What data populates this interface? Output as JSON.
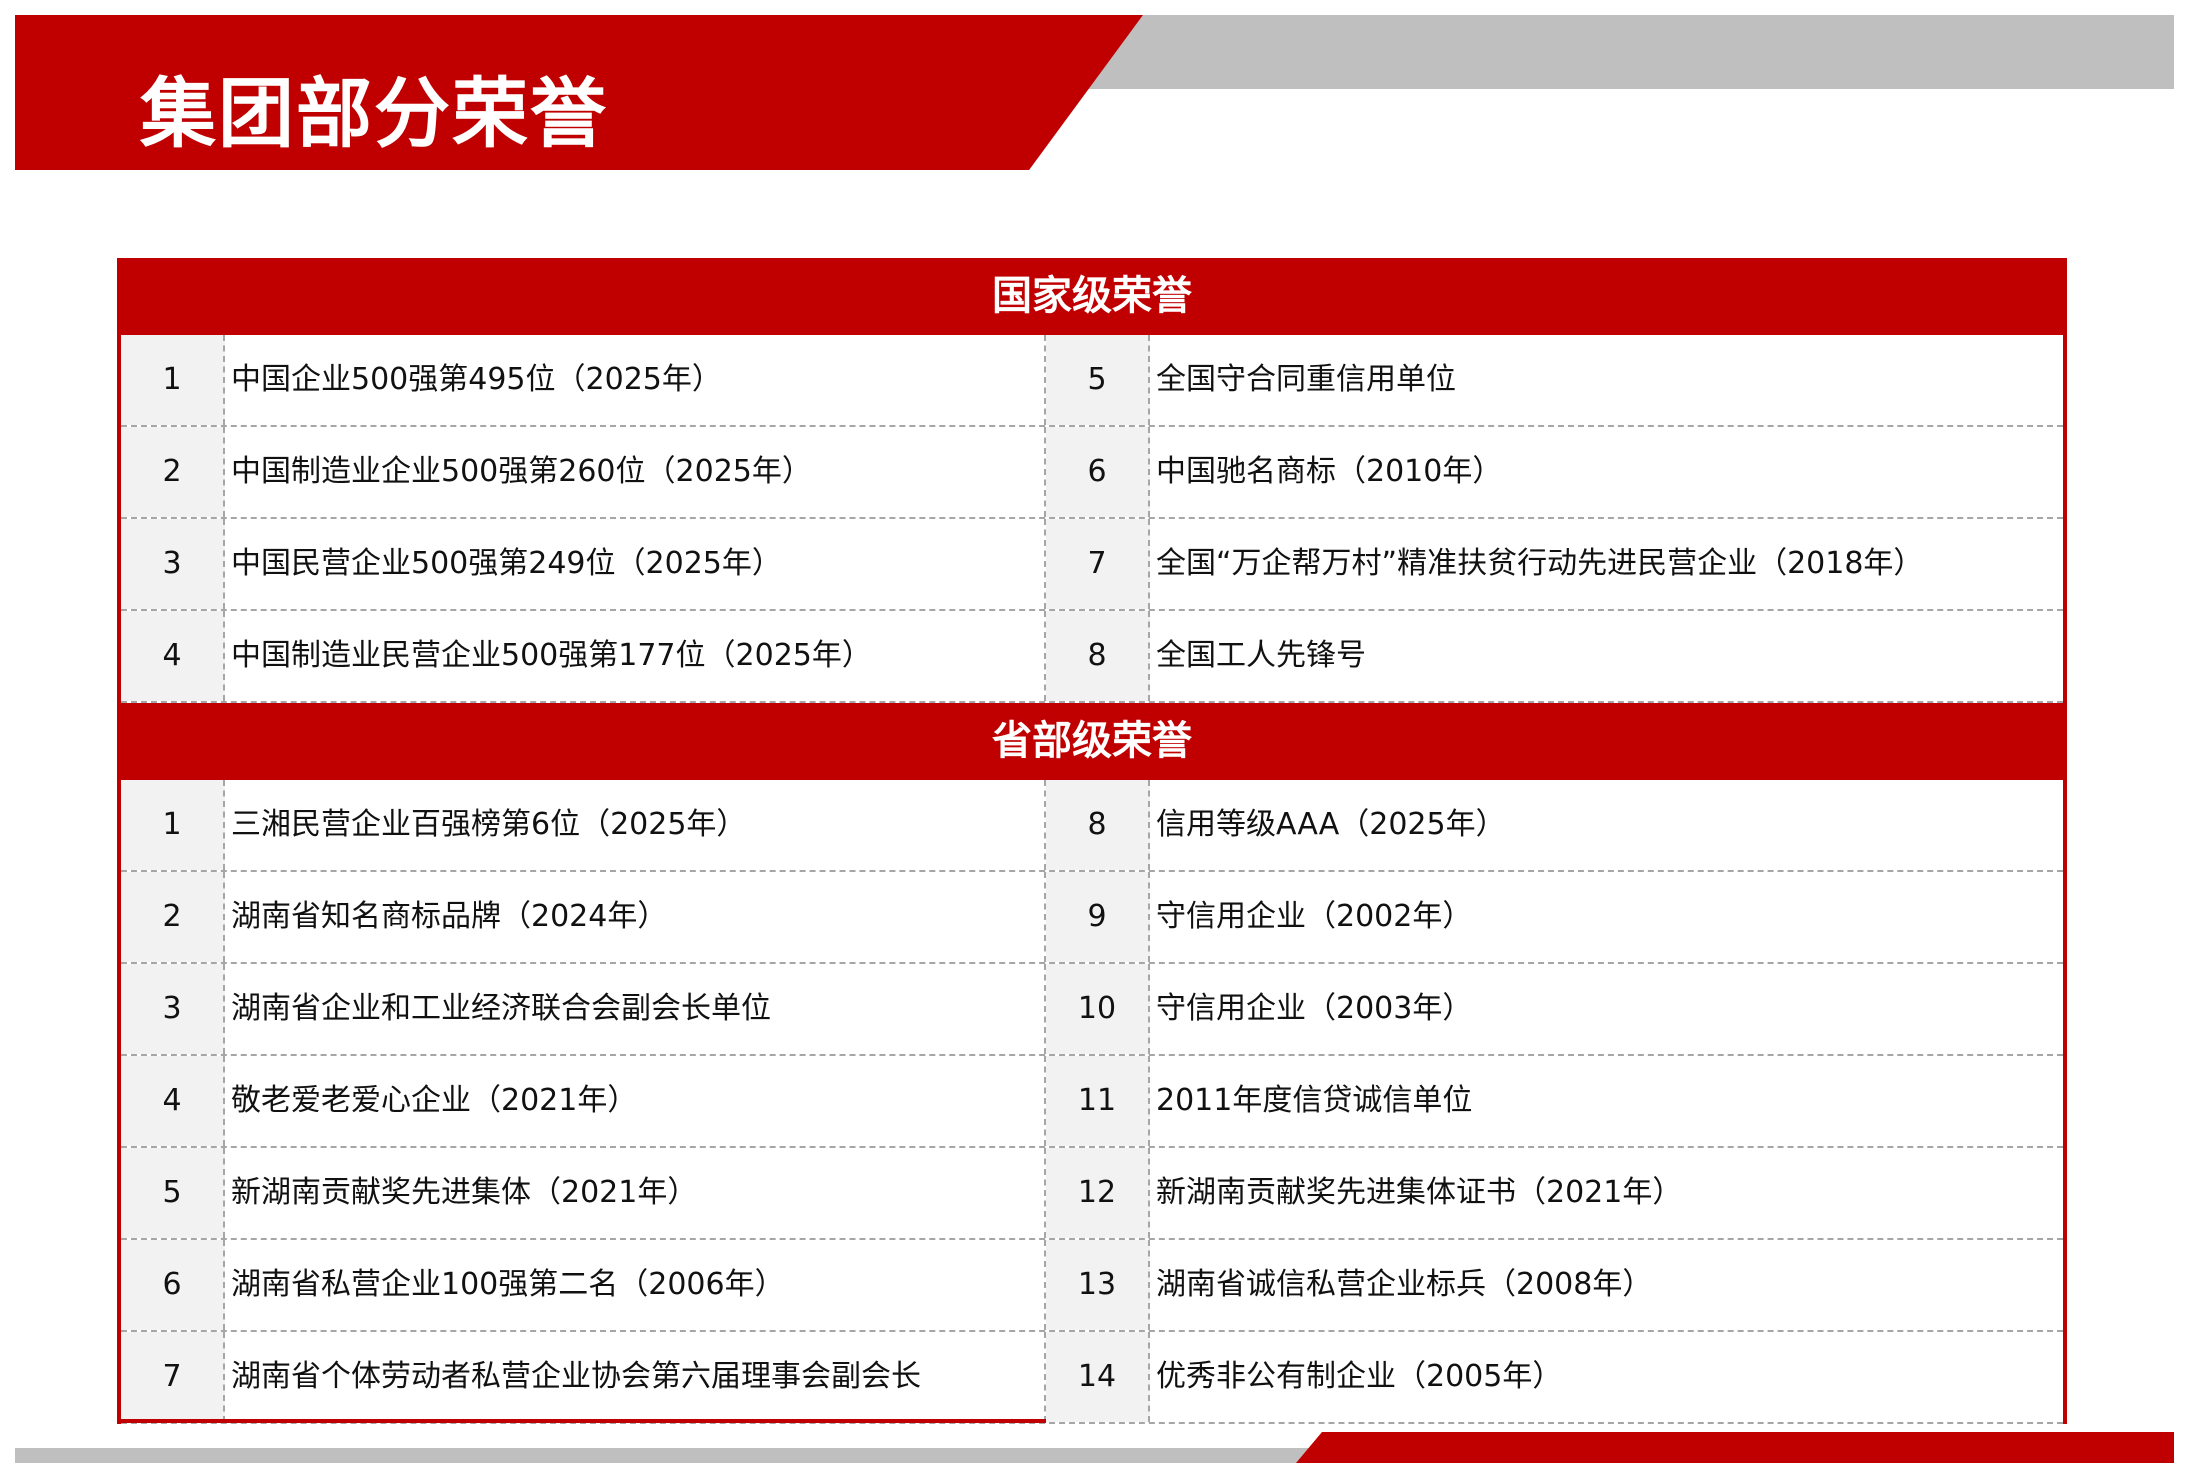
{
  "title": "集团部分荣誉",
  "colors": {
    "brand_red": "#c00000",
    "band_gray": "#bfbfbf",
    "cell_gray": "#f2f2f2"
  },
  "sections": [
    {
      "heading": "国家级荣誉",
      "left": [
        {
          "n": "1",
          "t": "中国企业500强第495位（2025年）"
        },
        {
          "n": "2",
          "t": "中国制造业企业500强第260位（2025年）"
        },
        {
          "n": "3",
          "t": "中国民营企业500强第249位（2025年）"
        },
        {
          "n": "4",
          "t": "中国制造业民营企业500强第177位（2025年）"
        }
      ],
      "right": [
        {
          "n": "5",
          "t": "全国守合同重信用单位"
        },
        {
          "n": "6",
          "t": "中国驰名商标（2010年）"
        },
        {
          "n": "7",
          "t": "全国“万企帮万村”精准扶贫行动先进民营企业（2018年）"
        },
        {
          "n": "8",
          "t": "全国工人先锋号"
        }
      ]
    },
    {
      "heading": "省部级荣誉",
      "left": [
        {
          "n": "1",
          "t": "三湘民营企业百强榜第6位（2025年）"
        },
        {
          "n": "2",
          "t": "湖南省知名商标品牌（2024年）"
        },
        {
          "n": "3",
          "t": "湖南省企业和工业经济联合会副会长单位"
        },
        {
          "n": "4",
          "t": "敬老爱老爱心企业（2021年）"
        },
        {
          "n": "5",
          "t": "新湖南贡献奖先进集体（2021年）"
        },
        {
          "n": "6",
          "t": "湖南省私营企业100强第二名（2006年）"
        },
        {
          "n": "7",
          "t": "湖南省个体劳动者私营企业协会第六届理事会副会长"
        }
      ],
      "right": [
        {
          "n": "8",
          "t": "信用等级AAA（2025年）"
        },
        {
          "n": "9",
          "t": "守信用企业（2002年）"
        },
        {
          "n": "10",
          "t": "守信用企业（2003年）"
        },
        {
          "n": "11",
          "t": "2011年度信贷诚信单位"
        },
        {
          "n": "12",
          "t": "新湖南贡献奖先进集体证书（2021年）"
        },
        {
          "n": "13",
          "t": "湖南省诚信私营企业标兵（2008年）"
        },
        {
          "n": "14",
          "t": "优秀非公有制企业（2005年）"
        }
      ]
    }
  ]
}
